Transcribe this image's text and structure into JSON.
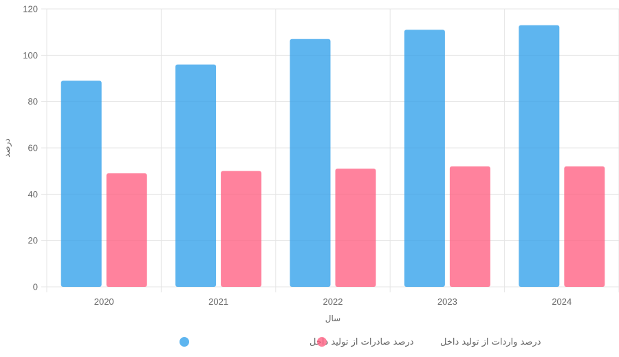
{
  "chart_data": {
    "type": "bar",
    "title": "",
    "xlabel": "سال",
    "ylabel": "درصد",
    "categories": [
      "2020",
      "2021",
      "2022",
      "2023",
      "2024"
    ],
    "ylim": [
      0,
      120
    ],
    "yticks": [
      0,
      20,
      40,
      60,
      80,
      100,
      120
    ],
    "grid": true,
    "legend_position": "bottom",
    "series": [
      {
        "name": "درصد صادرات از تولید داخل",
        "color": "#36a2eb",
        "values": [
          89,
          96,
          107,
          111,
          113
        ]
      },
      {
        "name": "درصد واردات از تولید داخل",
        "color": "#ff6384",
        "values": [
          49,
          50,
          51,
          52,
          52
        ]
      }
    ]
  }
}
